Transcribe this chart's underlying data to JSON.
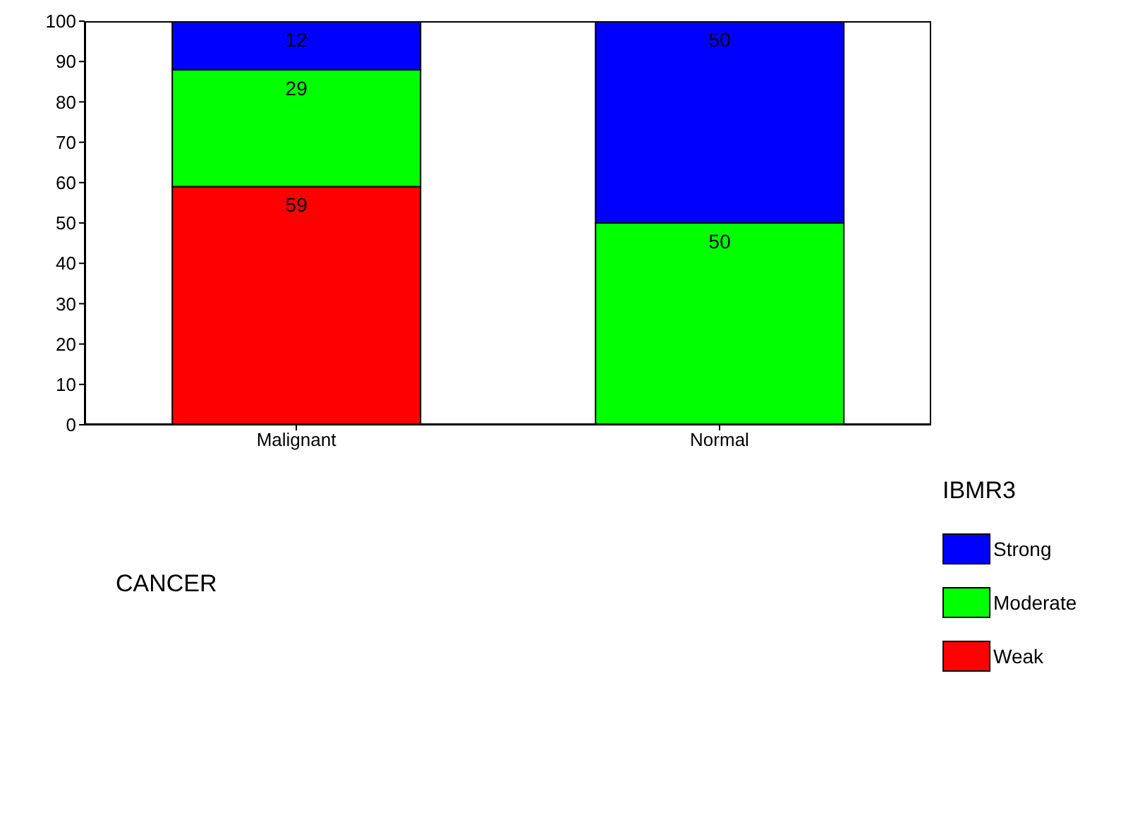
{
  "chart_data": {
    "type": "bar",
    "stacked": true,
    "xlabel": "CANCER",
    "legend_title": "IBMR3",
    "legend": "right",
    "categories": [
      "Malignant",
      "Normal"
    ],
    "series": [
      {
        "name": "Weak",
        "color": "#ff0000",
        "values": [
          59,
          null
        ]
      },
      {
        "name": "Moderate",
        "color": "#00ff00",
        "values": [
          29,
          50
        ]
      },
      {
        "name": "Strong",
        "color": "#0000ff",
        "values": [
          12,
          50
        ]
      }
    ],
    "ylim": [
      0,
      100
    ],
    "yticks": [
      0,
      10,
      20,
      30,
      40,
      50,
      60,
      70,
      80,
      90,
      100
    ],
    "data_labels": true,
    "grid": false
  }
}
